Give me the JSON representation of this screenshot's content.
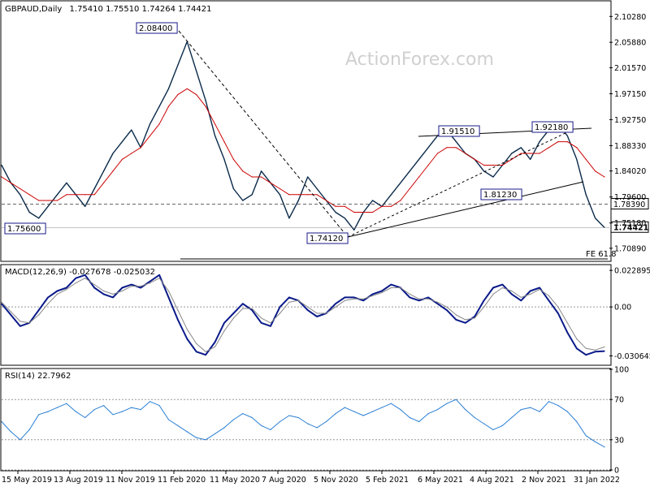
{
  "chart_data": [
    {
      "type": "line",
      "title": "GBPAUD,Daily",
      "ohlc": "1.75410 1.75510 1.74264 1.74421",
      "watermark": "ActionForex.com",
      "ylim": [
        1.688,
        2.128
      ],
      "yticks": [
        "2.10280",
        "2.05880",
        "2.01570",
        "1.97150",
        "1.92750",
        "1.88330",
        "1.84020",
        "1.79600",
        "1.75180",
        "1.70890"
      ],
      "ytick_values": [
        2.1028,
        2.0588,
        2.0157,
        1.9715,
        1.9275,
        1.8833,
        1.8402,
        1.796,
        1.7518,
        1.7089
      ],
      "price_labels": [
        {
          "text": "1.78390",
          "value": 1.7839
        },
        {
          "text": "1.74421",
          "value": 1.74421,
          "highlight": true
        }
      ],
      "annotations": [
        {
          "text": "2.08400",
          "x": "Feb 2020",
          "y": 2.084
        },
        {
          "text": "1.75600",
          "x": "May 2019",
          "y": 1.756
        },
        {
          "text": "1.74120",
          "x": "Nov 2020",
          "y": 1.7412
        },
        {
          "text": "1.91510",
          "x": "Jun 2021",
          "y": 1.9151
        },
        {
          "text": "1.92180",
          "x": "Nov 2021",
          "y": 1.9218
        },
        {
          "text": "1.81230",
          "x": "Aug 2021",
          "y": 1.8123
        },
        {
          "text": "FE 61.8",
          "y": 1.7
        }
      ],
      "series": [
        {
          "name": "price",
          "color": "#0a2a4a",
          "y": [
            1.85,
            1.82,
            1.8,
            1.77,
            1.76,
            1.78,
            1.8,
            1.82,
            1.8,
            1.78,
            1.81,
            1.84,
            1.87,
            1.89,
            1.91,
            1.88,
            1.92,
            1.95,
            1.98,
            2.02,
            2.06,
            2.01,
            1.96,
            1.9,
            1.86,
            1.81,
            1.79,
            1.8,
            1.84,
            1.82,
            1.8,
            1.76,
            1.79,
            1.83,
            1.81,
            1.79,
            1.77,
            1.76,
            1.74,
            1.77,
            1.79,
            1.78,
            1.8,
            1.82,
            1.84,
            1.86,
            1.88,
            1.9,
            1.91,
            1.89,
            1.87,
            1.86,
            1.84,
            1.83,
            1.85,
            1.87,
            1.88,
            1.86,
            1.89,
            1.91,
            1.92,
            1.9,
            1.86,
            1.8,
            1.76,
            1.744
          ]
        },
        {
          "name": "ema",
          "color": "#cc0000",
          "y": [
            1.83,
            1.82,
            1.81,
            1.8,
            1.79,
            1.79,
            1.79,
            1.8,
            1.8,
            1.8,
            1.8,
            1.82,
            1.84,
            1.86,
            1.87,
            1.88,
            1.9,
            1.92,
            1.95,
            1.97,
            1.98,
            1.97,
            1.95,
            1.92,
            1.89,
            1.86,
            1.84,
            1.83,
            1.83,
            1.82,
            1.81,
            1.8,
            1.8,
            1.8,
            1.8,
            1.79,
            1.78,
            1.78,
            1.77,
            1.77,
            1.77,
            1.78,
            1.78,
            1.79,
            1.81,
            1.83,
            1.85,
            1.87,
            1.88,
            1.88,
            1.87,
            1.86,
            1.85,
            1.85,
            1.85,
            1.86,
            1.87,
            1.87,
            1.87,
            1.88,
            1.89,
            1.89,
            1.88,
            1.86,
            1.84,
            1.83
          ]
        }
      ]
    },
    {
      "type": "line",
      "title": "MACD(12,26,9) -0.027678 -0.025032",
      "ylim": [
        -0.036,
        0.026
      ],
      "yticks": [
        "0.022895",
        "0.00",
        "-0.030645"
      ],
      "ytick_values": [
        0.022895,
        0.0,
        -0.030645
      ],
      "series": [
        {
          "name": "macd",
          "color": "#0a1a8a",
          "y": [
            0.002,
            -0.005,
            -0.012,
            -0.01,
            -0.002,
            0.006,
            0.01,
            0.012,
            0.018,
            0.02,
            0.012,
            0.008,
            0.006,
            0.012,
            0.014,
            0.012,
            0.016,
            0.02,
            0.006,
            -0.008,
            -0.02,
            -0.028,
            -0.03,
            -0.022,
            -0.01,
            -0.004,
            0.002,
            -0.002,
            -0.01,
            -0.012,
            0.0,
            0.006,
            0.004,
            -0.002,
            -0.006,
            -0.004,
            0.002,
            0.006,
            0.006,
            0.004,
            0.008,
            0.01,
            0.014,
            0.012,
            0.006,
            0.004,
            0.006,
            0.002,
            -0.002,
            -0.008,
            -0.01,
            -0.006,
            0.004,
            0.012,
            0.014,
            0.008,
            0.004,
            0.01,
            0.012,
            0.004,
            -0.004,
            -0.016,
            -0.026,
            -0.03,
            -0.028,
            -0.027678
          ]
        },
        {
          "name": "signal",
          "color": "#888888",
          "y": [
            0.003,
            -0.003,
            -0.009,
            -0.01,
            -0.005,
            0.002,
            0.008,
            0.011,
            0.015,
            0.018,
            0.014,
            0.01,
            0.008,
            0.01,
            0.013,
            0.013,
            0.015,
            0.018,
            0.01,
            -0.002,
            -0.014,
            -0.023,
            -0.028,
            -0.025,
            -0.015,
            -0.007,
            -0.001,
            -0.001,
            -0.007,
            -0.01,
            -0.004,
            0.003,
            0.004,
            0.0,
            -0.004,
            -0.004,
            0.0,
            0.004,
            0.005,
            0.005,
            0.007,
            0.009,
            0.012,
            0.012,
            0.008,
            0.005,
            0.005,
            0.003,
            0.0,
            -0.005,
            -0.008,
            -0.007,
            0.0,
            0.008,
            0.012,
            0.01,
            0.006,
            0.008,
            0.011,
            0.007,
            0.0,
            -0.01,
            -0.02,
            -0.026,
            -0.027,
            -0.025032
          ]
        }
      ]
    },
    {
      "type": "line",
      "title": "RSI(14) 22.7962",
      "ylim": [
        0,
        100
      ],
      "yticks": [
        "100",
        "70",
        "30",
        "0"
      ],
      "ytick_values": [
        100,
        70,
        30,
        0
      ],
      "series": [
        {
          "name": "rsi",
          "color": "#2a7fd4",
          "y": [
            48,
            38,
            30,
            40,
            55,
            58,
            62,
            66,
            58,
            52,
            60,
            64,
            55,
            58,
            62,
            60,
            68,
            64,
            50,
            44,
            38,
            32,
            30,
            36,
            42,
            50,
            56,
            52,
            44,
            40,
            48,
            54,
            52,
            46,
            42,
            48,
            56,
            62,
            58,
            54,
            58,
            62,
            66,
            60,
            52,
            48,
            56,
            60,
            66,
            70,
            60,
            52,
            46,
            40,
            44,
            52,
            60,
            62,
            58,
            68,
            64,
            58,
            48,
            34,
            28,
            22.7962
          ]
        }
      ]
    }
  ],
  "x_axis": [
    "15 May 2019",
    "13 Aug 2019",
    "11 Nov 2019",
    "11 Feb 2020",
    "11 May 2020",
    "7 Aug 2020",
    "5 Nov 2020",
    "5 Feb 2021",
    "6 May 2021",
    "4 Aug 2021",
    "2 Nov 2021",
    "31 Jan 2022"
  ]
}
